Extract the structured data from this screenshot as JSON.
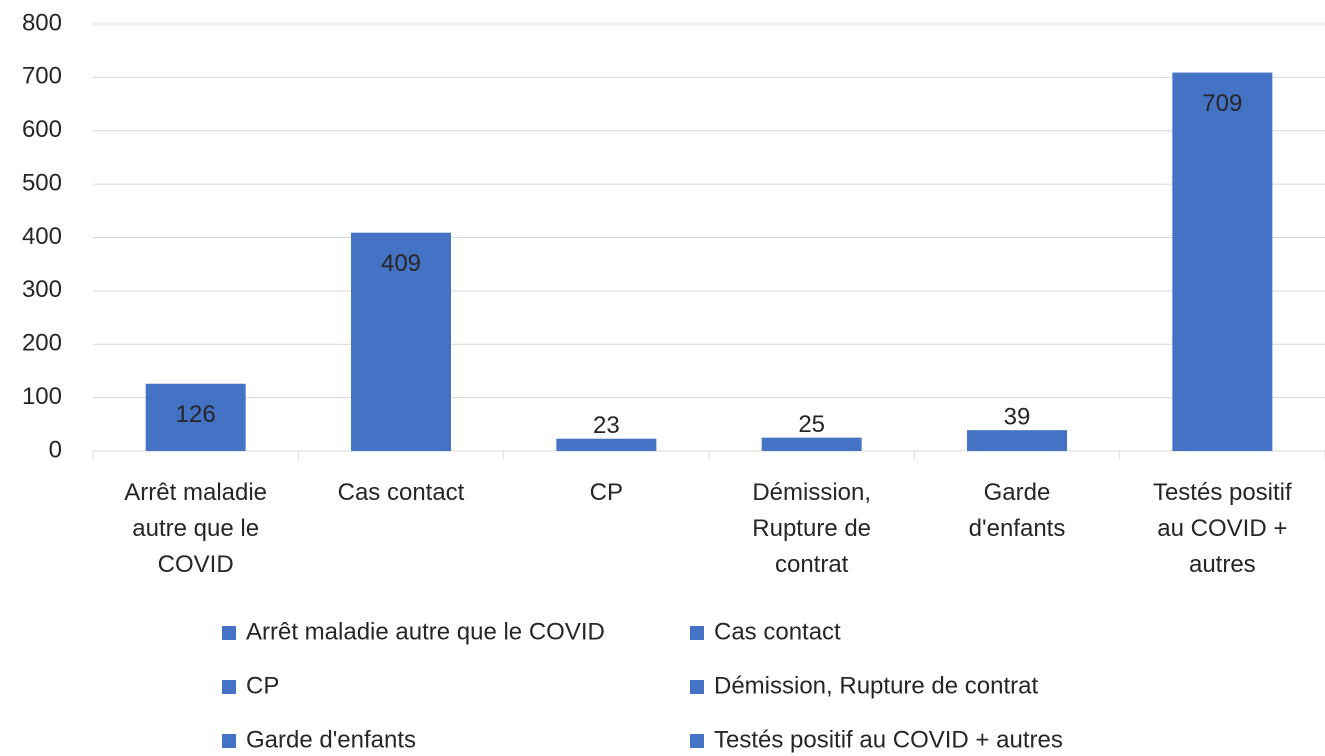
{
  "chart_data": {
    "type": "bar",
    "categories": [
      "Arrêt maladie autre que le COVID",
      "Cas contact",
      "CP",
      "Démission, Rupture de contrat",
      "Garde d'enfants",
      "Testés positif au COVID + autres"
    ],
    "values": [
      126,
      409,
      23,
      25,
      39,
      709
    ],
    "color": "#4472c4",
    "ylim": [
      0,
      800
    ],
    "yticks": [
      0,
      100,
      200,
      300,
      400,
      500,
      600,
      700,
      800
    ],
    "grid": true,
    "legend": "bottom"
  }
}
